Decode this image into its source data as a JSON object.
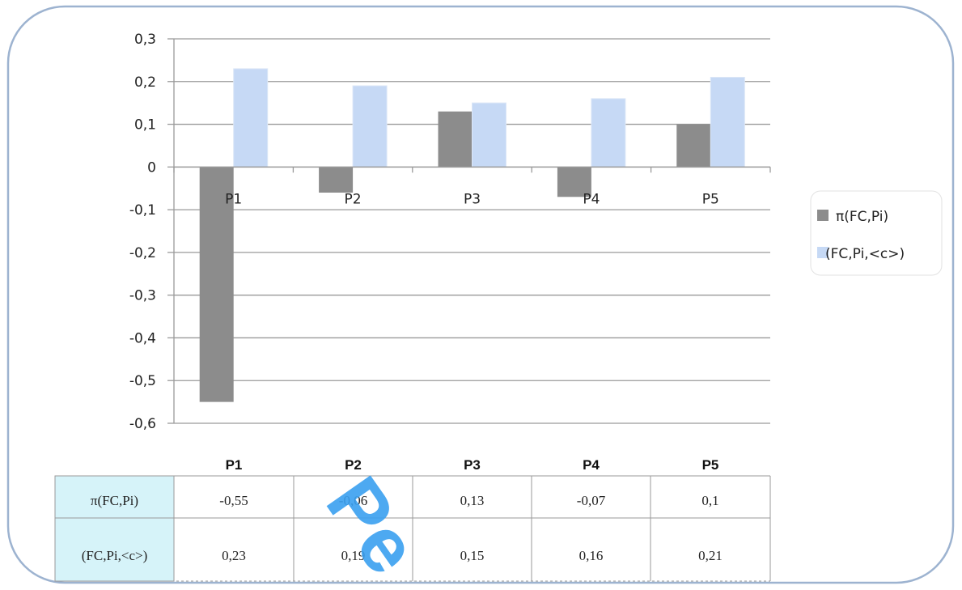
{
  "chart_data": {
    "type": "bar",
    "categories": [
      "P1",
      "P2",
      "P3",
      "P4",
      "P5"
    ],
    "series": [
      {
        "name": "π(FC,Pi)",
        "values": [
          -0.55,
          -0.06,
          0.13,
          -0.07,
          0.1
        ],
        "color": "#8c8c8c"
      },
      {
        "name": "(FC,Pi,<c>)",
        "values": [
          0.23,
          0.19,
          0.15,
          0.16,
          0.21
        ],
        "color": "#c6d9f5"
      }
    ],
    "ylim": [
      -0.6,
      0.3
    ],
    "yticks": [
      0.3,
      0.2,
      0.1,
      0,
      -0.1,
      -0.2,
      -0.3,
      -0.4,
      -0.5,
      -0.6
    ],
    "ytick_labels": [
      "0,3",
      "0,2",
      "0,1",
      "0",
      "-0,1",
      "-0,2",
      "-0,3",
      "-0,4",
      "-0,5",
      "-0,6"
    ],
    "grid": true,
    "legend_position": "right",
    "data_table": {
      "headers": [
        "P1",
        "P2",
        "P3",
        "P4",
        "P5"
      ],
      "rows": [
        {
          "label": "π(FC,Pi)",
          "cells": [
            "-0,55",
            "-0,06",
            "0,13",
            "-0,07",
            "0,1"
          ]
        },
        {
          "label": "(FC,Pi,<c>)",
          "cells": [
            "0,23",
            "0,19",
            "0,15",
            "0,16",
            "0,21"
          ]
        }
      ]
    }
  },
  "watermark": "Pe"
}
